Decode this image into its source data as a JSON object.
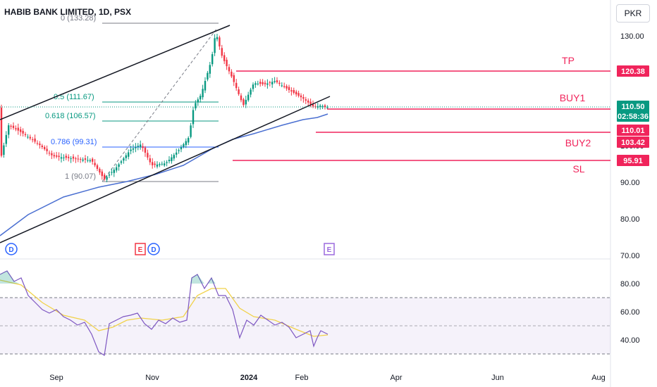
{
  "header": {
    "title": "HABIB BANK LIMITED, 1D, PSX",
    "currency": "PKR"
  },
  "chart_data": {
    "type": "candlestick",
    "price_axis": {
      "ticks": [
        "130.00",
        "120.00",
        "110.00",
        "100.00",
        "90.00",
        "80.00",
        "70.00"
      ]
    },
    "time_axis": {
      "ticks": [
        "Sep",
        "Nov",
        "2024",
        "Feb",
        "Apr",
        "Jun",
        "Aug"
      ]
    },
    "price_badges": [
      {
        "label": "120.38",
        "color": "#f0245b"
      },
      {
        "label": "110.50",
        "color": "#089981"
      },
      {
        "label": "02:58:36",
        "color": "#089981"
      },
      {
        "label": "110.01",
        "color": "#f0245b"
      },
      {
        "label": "103.42",
        "color": "#f0245b"
      },
      {
        "label": "95.91",
        "color": "#f0245b"
      }
    ],
    "levels": [
      {
        "name": "TP",
        "price": 120.38
      },
      {
        "name": "BUY1",
        "price": 110.01
      },
      {
        "name": "BUY2",
        "price": 103.42
      },
      {
        "name": "SL",
        "price": 95.91
      }
    ],
    "fibonacci": [
      {
        "label": "0 (133.28)"
      },
      {
        "label": "0.5 (111.67)"
      },
      {
        "label": "0.618 (106.57)"
      },
      {
        "label": "0.786 (99.31)"
      },
      {
        "label": "1 (90.07)"
      }
    ],
    "event_markers": [
      "D",
      "E",
      "D",
      "E"
    ],
    "rsi_axis": {
      "ticks": [
        "80.00",
        "60.00",
        "40.00"
      ]
    },
    "colors": {
      "up": "#089981",
      "down": "#f23645",
      "ma": "#4a6fd1",
      "level": "#f0245b",
      "rsi": "#7e57c2",
      "rsi_ma": "#f1d24a"
    }
  }
}
